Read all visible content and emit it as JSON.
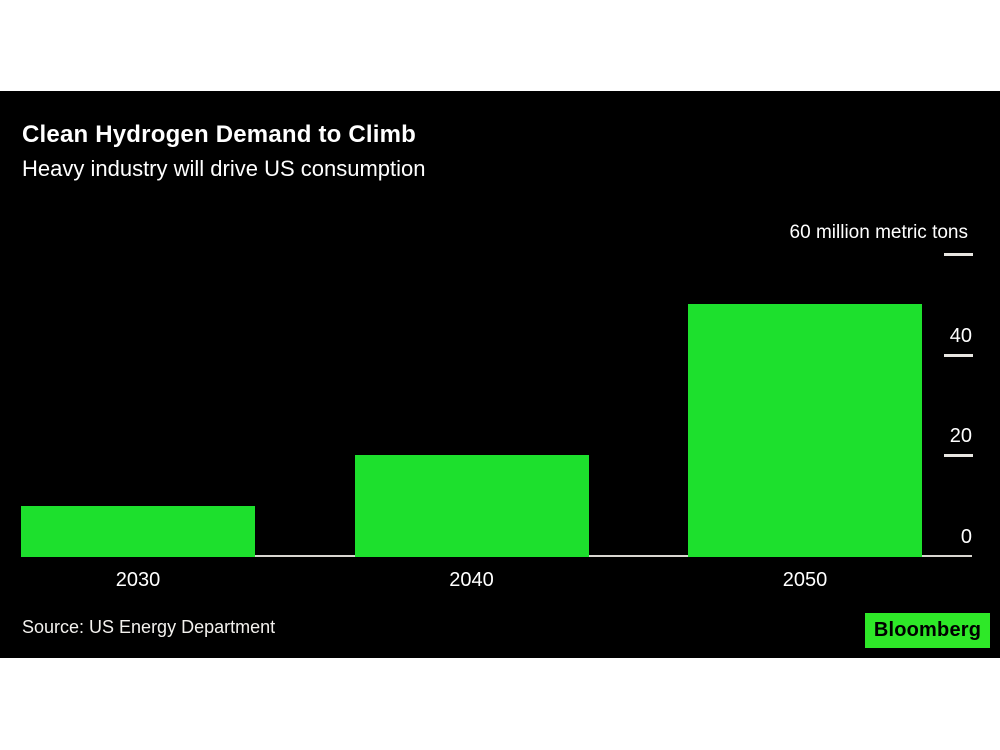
{
  "chart_data": {
    "type": "bar",
    "title": "Clean Hydrogen Demand to Climb",
    "subtitle": "Heavy industry will drive US consumption",
    "categories": [
      "2030",
      "2040",
      "2050"
    ],
    "values": [
      10,
      20,
      50
    ],
    "unit_top_label": "60 million metric tons",
    "ylabel": "million metric tons",
    "ylim": [
      0,
      60
    ],
    "yticks": [
      0,
      20,
      40,
      60
    ],
    "grid": false,
    "legend": false,
    "bar_color": "#1de02d",
    "axis_line_color": "#d9d6d0",
    "tick_dash_color": "#e8e6e1",
    "panel_background": "#000000",
    "page_background": "#ffffff",
    "text_color": "#ffffff"
  },
  "footer": {
    "source": "Source: US Energy Department",
    "brand": "Bloomberg",
    "brand_bg": "#2ee828"
  }
}
